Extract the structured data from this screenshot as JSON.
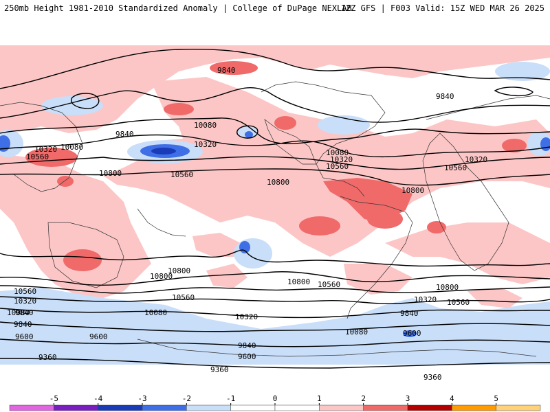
{
  "header": {
    "title": "250mb Height 1981-2010 Standardized Anomaly | College of DuPage NEXLAB",
    "run_info": "12Z GFS | F003 Valid: 15Z WED MAR 26 2025"
  },
  "colorbar": {
    "ticks": [
      "-5",
      "-4",
      "-3",
      "-2",
      "-1",
      "0",
      "1",
      "2",
      "3",
      "4",
      "5"
    ],
    "colors": [
      "#e066e0",
      "#7a1fbf",
      "#1a3bb8",
      "#3f6fe6",
      "#c9def8",
      "#ffffff",
      "#ffffff",
      "#fcc6c6",
      "#f06a6a",
      "#b50000",
      "#ff9a00",
      "#ffd27a"
    ]
  },
  "contour_labels": [
    {
      "id": "c1",
      "text": "9840"
    },
    {
      "id": "c2",
      "text": "9840"
    },
    {
      "id": "c3",
      "text": "9840"
    },
    {
      "id": "c4",
      "text": "10080"
    },
    {
      "id": "c5",
      "text": "10080"
    },
    {
      "id": "c6",
      "text": "10320"
    },
    {
      "id": "c7",
      "text": "10320"
    },
    {
      "id": "c8",
      "text": "10560"
    },
    {
      "id": "c9",
      "text": "10560"
    },
    {
      "id": "c10",
      "text": "10800"
    },
    {
      "id": "c11",
      "text": "10800"
    },
    {
      "id": "c12",
      "text": "10080"
    },
    {
      "id": "c13",
      "text": "10320"
    },
    {
      "id": "c14",
      "text": "10560"
    },
    {
      "id": "c15",
      "text": "10320"
    },
    {
      "id": "c16",
      "text": "10560"
    },
    {
      "id": "c17",
      "text": "10800"
    },
    {
      "id": "c18",
      "text": "10800"
    },
    {
      "id": "c19",
      "text": "10800"
    },
    {
      "id": "c20",
      "text": "10560"
    },
    {
      "id": "c21",
      "text": "10560"
    },
    {
      "id": "c22",
      "text": "10320"
    },
    {
      "id": "c23",
      "text": "9840"
    },
    {
      "id": "c24",
      "text": "10080"
    },
    {
      "id": "c25",
      "text": "10320"
    },
    {
      "id": "c26",
      "text": "9600"
    },
    {
      "id": "c27",
      "text": "9840"
    },
    {
      "id": "c28",
      "text": "9600"
    },
    {
      "id": "c29",
      "text": "9360"
    },
    {
      "id": "c30",
      "text": "9360"
    },
    {
      "id": "c31",
      "text": "10800"
    },
    {
      "id": "c32",
      "text": "10560"
    },
    {
      "id": "c33",
      "text": "10800"
    },
    {
      "id": "c34",
      "text": "10560"
    },
    {
      "id": "c35",
      "text": "10320"
    },
    {
      "id": "c36",
      "text": "9840"
    },
    {
      "id": "c37",
      "text": "10080"
    },
    {
      "id": "c38",
      "text": "9600"
    },
    {
      "id": "c39",
      "text": "9360"
    },
    {
      "id": "c40",
      "text": "9600"
    },
    {
      "id": "c41",
      "text": "9840"
    },
    {
      "id": "c42",
      "text": "10080"
    }
  ]
}
